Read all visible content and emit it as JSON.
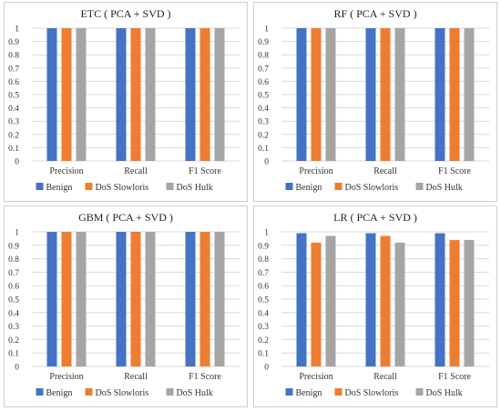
{
  "colors": {
    "benign": "#4472c4",
    "slowloris": "#ed7d31",
    "hulk": "#a5a5a5",
    "grid": "#d9d9d9"
  },
  "chart_data": [
    {
      "type": "bar",
      "title": "ETC ( PCA + SVD )",
      "categories": [
        "Precision",
        "Recall",
        "F1 Score"
      ],
      "ylim": [
        0,
        1
      ],
      "yticks": [
        "0",
        "0.1",
        "0.2",
        "0.3",
        "0.4",
        "0.5",
        "0.6",
        "0.7",
        "0.8",
        "0.9",
        "1"
      ],
      "legend_position": "bottom",
      "grid": true,
      "series": [
        {
          "name": "Benign",
          "values": [
            1,
            1,
            1
          ]
        },
        {
          "name": "DoS Slowloris",
          "values": [
            1,
            1,
            1
          ]
        },
        {
          "name": "DoS Hulk",
          "values": [
            1,
            1,
            1
          ]
        }
      ]
    },
    {
      "type": "bar",
      "title": "RF ( PCA + SVD )",
      "categories": [
        "Precision",
        "Recall",
        "F1 Score"
      ],
      "ylim": [
        0,
        1
      ],
      "yticks": [
        "0",
        "0.1",
        "0.2",
        "0.3",
        "0.4",
        "0.5",
        "0.6",
        "0.7",
        "0.8",
        "0.9",
        "1"
      ],
      "legend_position": "bottom",
      "grid": true,
      "series": [
        {
          "name": "Benign",
          "values": [
            1,
            1,
            1
          ]
        },
        {
          "name": "DoS Slowloris",
          "values": [
            1,
            1,
            1
          ]
        },
        {
          "name": "DoS Hulk",
          "values": [
            1,
            1,
            1
          ]
        }
      ]
    },
    {
      "type": "bar",
      "title": "GBM ( PCA + SVD )",
      "categories": [
        "Precision",
        "Recall",
        "F1 Score"
      ],
      "ylim": [
        0,
        1
      ],
      "yticks": [
        "0",
        "0.1",
        "0.2",
        "0.3",
        "0.4",
        "0.5",
        "0.6",
        "0.7",
        "0.8",
        "0.9",
        "1"
      ],
      "legend_position": "bottom",
      "grid": true,
      "series": [
        {
          "name": "Benign",
          "values": [
            1,
            1,
            1
          ]
        },
        {
          "name": "DoS Slowloris",
          "values": [
            1,
            1,
            1
          ]
        },
        {
          "name": "DoS Hulk",
          "values": [
            1,
            1,
            1
          ]
        }
      ]
    },
    {
      "type": "bar",
      "title": "LR ( PCA + SVD )",
      "categories": [
        "Precision",
        "Recall",
        "F1 Score"
      ],
      "ylim": [
        0,
        1
      ],
      "yticks": [
        "0",
        "0.1",
        "0.2",
        "0.3",
        "0.4",
        "0.5",
        "0.6",
        "0.7",
        "0.8",
        "0.9",
        "1"
      ],
      "legend_position": "bottom",
      "grid": true,
      "series": [
        {
          "name": "Benign",
          "values": [
            0.99,
            0.99,
            0.99
          ]
        },
        {
          "name": "DoS Slowloris",
          "values": [
            0.92,
            0.97,
            0.94
          ]
        },
        {
          "name": "DoS Hulk",
          "values": [
            0.97,
            0.92,
            0.94
          ]
        }
      ]
    }
  ]
}
